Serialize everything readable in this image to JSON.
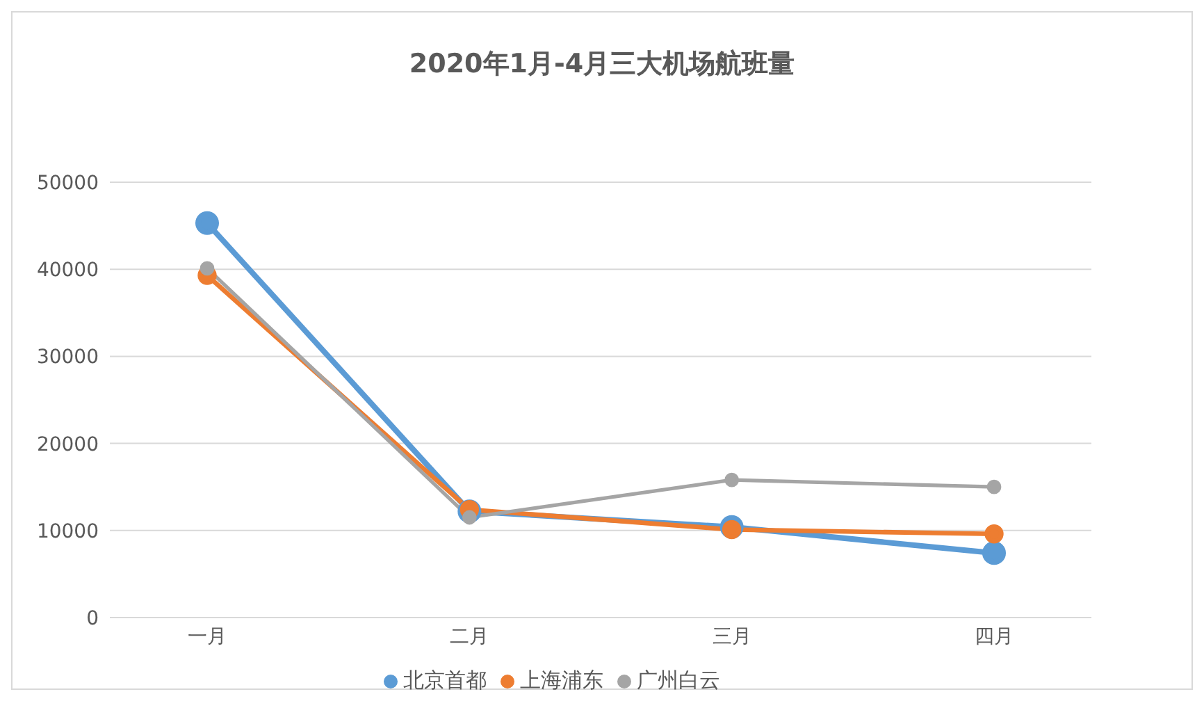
{
  "chart_data": {
    "type": "line",
    "title": "2020年1月-4月三大机场航班量",
    "categories": [
      "一月",
      "二月",
      "三月",
      "四月"
    ],
    "series": [
      {
        "name": "北京首都",
        "color": "#5b9bd5",
        "values": [
          45300,
          12200,
          10400,
          7400
        ]
      },
      {
        "name": "上海浦东",
        "color": "#ed7d31",
        "values": [
          39300,
          12400,
          10100,
          9600
        ]
      },
      {
        "name": "广州白云",
        "color": "#a5a5a5",
        "values": [
          40100,
          11500,
          15800,
          15000
        ]
      }
    ],
    "ylim": [
      0,
      50000
    ],
    "yticks": [
      0,
      10000,
      20000,
      30000,
      40000,
      50000
    ],
    "grid": "y",
    "legend": "bottom",
    "marker": "circle",
    "line_style": "solid"
  }
}
